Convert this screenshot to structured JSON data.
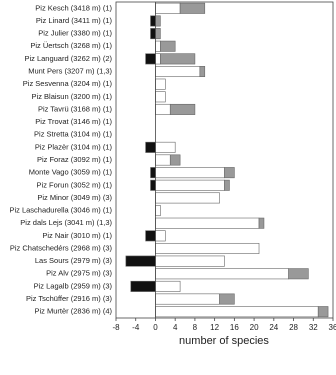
{
  "chart_data": {
    "type": "bar",
    "orientation": "horizontal",
    "stacked": true,
    "x_label": "number of species",
    "categories": [
      "Piz Kesch (3418 m) (1)",
      "Piz Linard (3411 m) (1)",
      "Piz Julier (3380 m)  (1)",
      "Piz Üertsch (3268 m) (1)",
      "Piz Languard (3262 m) (2)",
      "Munt Pers (3207 m) (1,3)",
      "Piz Sesvenna (3204 m) (1)",
      "Piz Blaisun (3200 m) (1)",
      "Piz Tavrü (3168 m) (1)",
      "Piz Trovat (3146 m) (1)",
      "Piz Stretta (3104 m) (1)",
      "Piz Plazèr (3104 m) (1)",
      "Piz Foraz (3092 m) (1)",
      "Monte Vago (3059 m) (1)",
      "Piz Forun (3052 m) (1)",
      "Piz Minor (3049 m) (3)",
      "Piz Laschadurella (3046 m) (1)",
      "Piz dals Lejs (3041 m) (1,3)",
      "Piz Nair (3010 m) (1)",
      "Piz Chatschedérs (2968 m) (3)",
      "Las Sours (2979 m) (3)",
      "Piz Alv (2975 m) (3)",
      "Piz Lagalb (2959 m) (3)",
      "Piz Tschüffer (2916 m) (3)",
      "Piz Murtèr (2836 m) (4)"
    ],
    "series": [
      {
        "color": "#111111",
        "values": [
          0,
          -1,
          -1,
          0,
          -2,
          0,
          0,
          0,
          0,
          0,
          0,
          -2,
          0,
          -1,
          -1,
          0,
          0,
          0,
          -2,
          0,
          -6,
          0,
          -5,
          0,
          0
        ]
      },
      {
        "color": "#ffffff",
        "values": [
          5,
          0,
          0,
          1,
          1,
          9,
          2,
          2,
          3,
          0,
          0,
          4,
          3,
          14,
          14,
          13,
          1,
          21,
          2,
          21,
          14,
          27,
          5,
          13,
          33
        ]
      },
      {
        "color": "#999999",
        "values": [
          5,
          1,
          1,
          3,
          7,
          1,
          0,
          0,
          5,
          0,
          0,
          0,
          2,
          2,
          1,
          0,
          0,
          1,
          0,
          0,
          0,
          4,
          0,
          3,
          2
        ]
      }
    ],
    "xlim": [
      -8,
      36
    ],
    "xticks": [
      -8,
      -4,
      0,
      4,
      8,
      12,
      16,
      20,
      24,
      28,
      32,
      36
    ]
  }
}
